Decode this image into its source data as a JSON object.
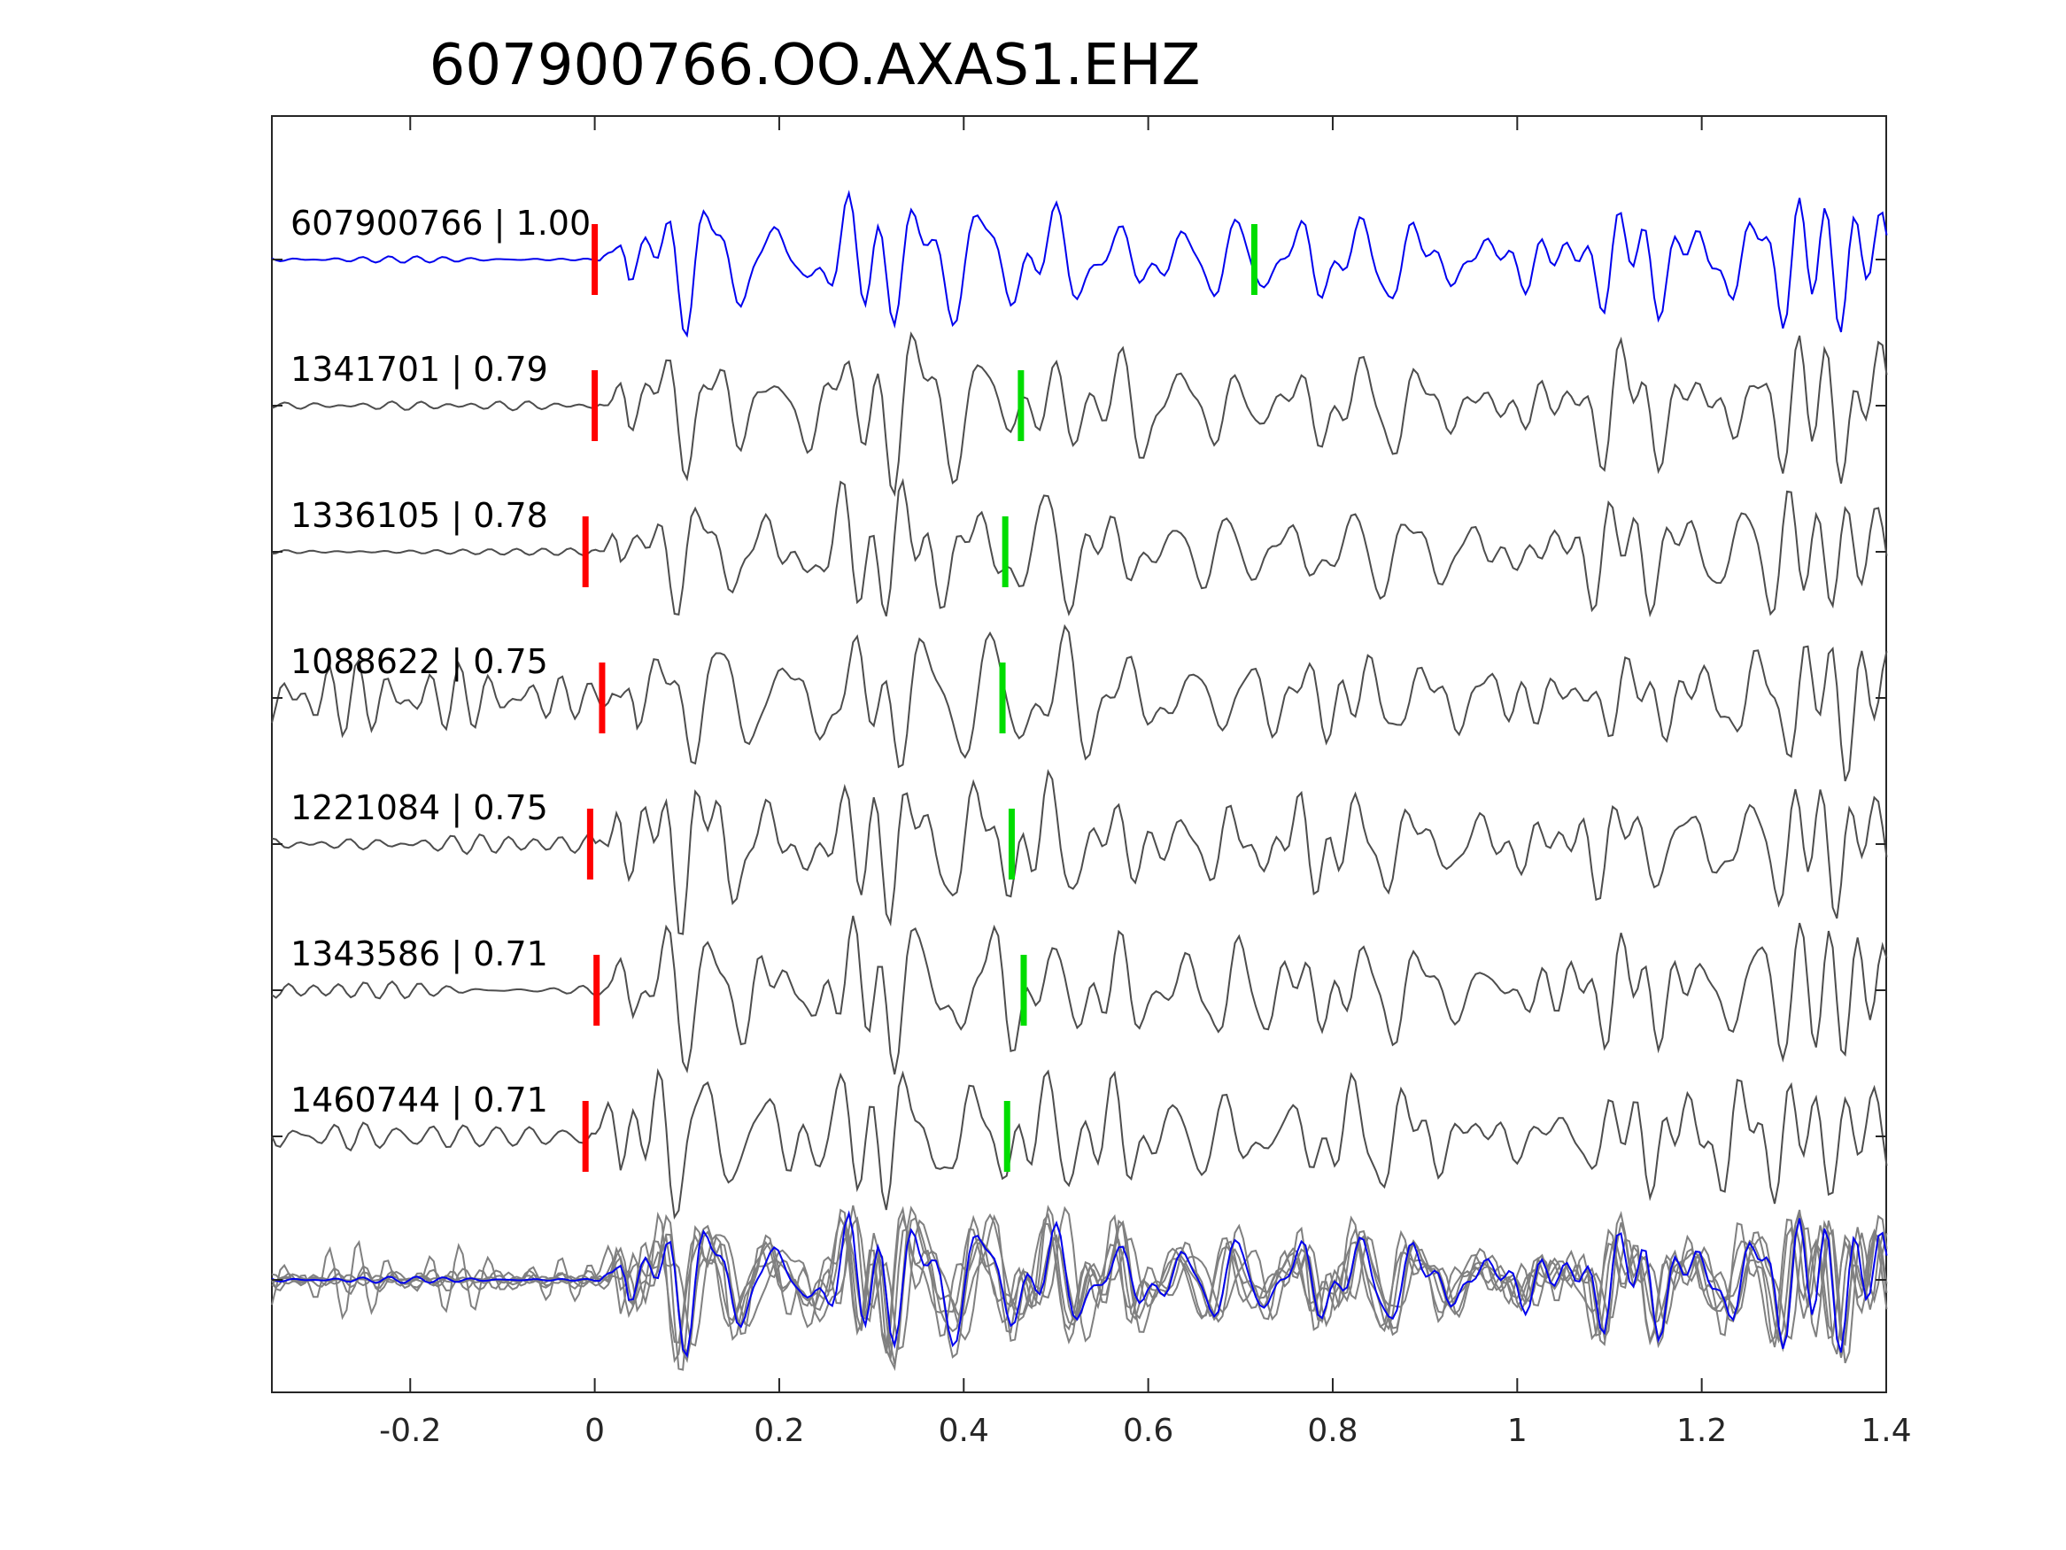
{
  "chart_data": {
    "type": "line",
    "title": "607900766.OO.AXAS1.EHZ",
    "xlabel": "",
    "ylabel": "",
    "xlim": [
      -0.35,
      1.4
    ],
    "x_ticks": [
      -0.2,
      0,
      0.2,
      0.4,
      0.6,
      0.8,
      1,
      1.2,
      1.4
    ],
    "x_tick_labels": [
      "-0.2",
      "0",
      "0.2",
      "0.4",
      "0.6",
      "0.8",
      "1",
      "1.2",
      "1.4"
    ],
    "grid": false,
    "colors": {
      "target": "#0000ee",
      "template": "#4d4d4d",
      "stack_template": "#808080",
      "p_pick": "#ff0000",
      "s_pick": "#00dd00",
      "axes": "#262626"
    },
    "traces": [
      {
        "label": "607900766 | 1.00",
        "p_pick": 0.0,
        "s_pick": 0.715,
        "pre_noise": 0.05,
        "color": "target"
      },
      {
        "label": "1341701 | 0.79",
        "p_pick": 0.0,
        "s_pick": 0.462,
        "pre_noise": 0.06,
        "color": "template"
      },
      {
        "label": "1336105 | 0.78",
        "p_pick": -0.01,
        "s_pick": 0.445,
        "pre_noise": 0.08,
        "color": "template"
      },
      {
        "label": "1088622 | 0.75",
        "p_pick": 0.008,
        "s_pick": 0.442,
        "pre_noise": 0.4,
        "color": "template"
      },
      {
        "label": "1221084 | 0.75",
        "p_pick": -0.005,
        "s_pick": 0.452,
        "pre_noise": 0.12,
        "color": "template"
      },
      {
        "label": "1343586 | 0.71",
        "p_pick": 0.002,
        "s_pick": 0.465,
        "pre_noise": 0.1,
        "color": "template"
      },
      {
        "label": "1460744 | 0.71",
        "p_pick": -0.01,
        "s_pick": 0.447,
        "pre_noise": 0.2,
        "color": "template"
      }
    ],
    "stack": {
      "label": "",
      "description": "overlay of all traces"
    }
  }
}
